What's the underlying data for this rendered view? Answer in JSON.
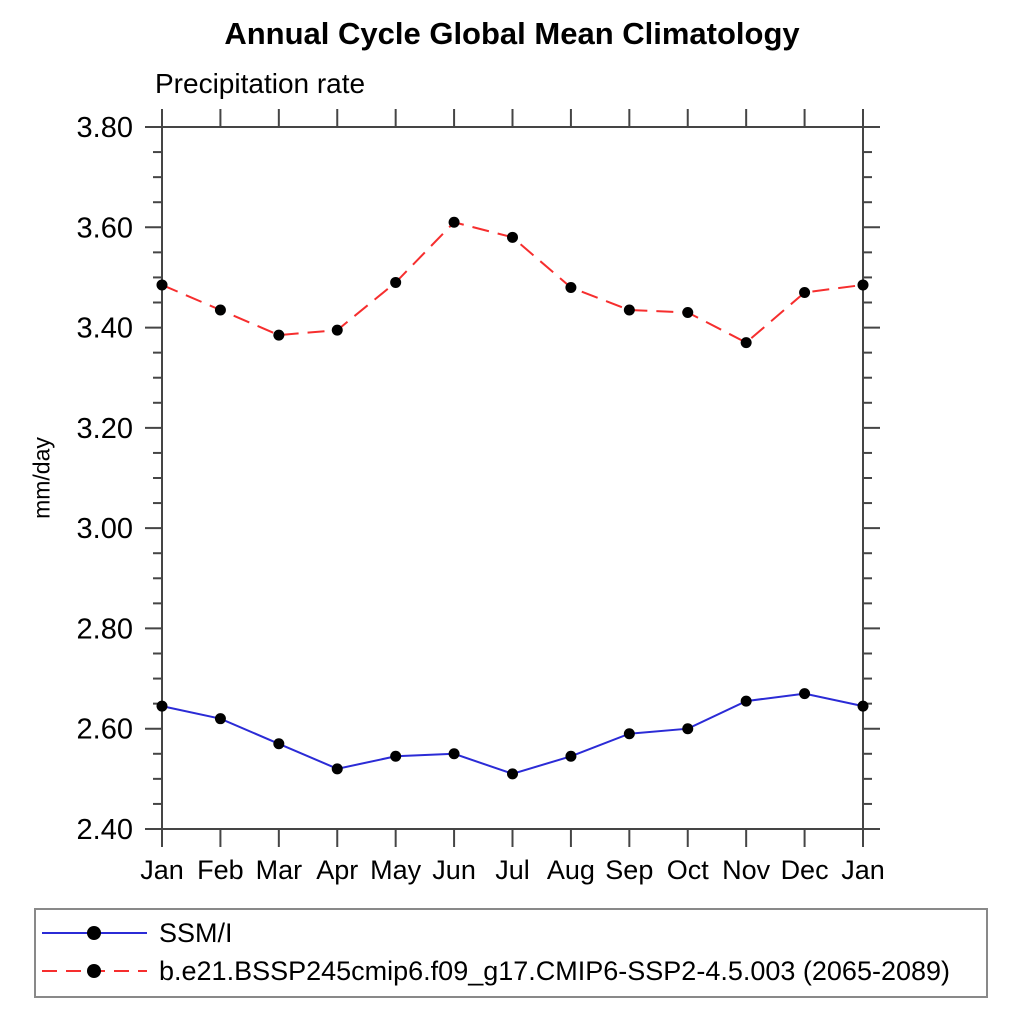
{
  "chart_data": {
    "type": "line",
    "title": "Annual Cycle Global Mean Climatology",
    "subtitle": "Precipitation rate",
    "ylabel": "mm/day",
    "xlabel": "",
    "x_categories": [
      "Jan",
      "Feb",
      "Mar",
      "Apr",
      "May",
      "Jun",
      "Jul",
      "Aug",
      "Sep",
      "Oct",
      "Nov",
      "Dec",
      "Jan"
    ],
    "ylim": [
      2.4,
      3.8
    ],
    "ytick_major_interval": 0.2,
    "ytick_minor_interval": 0.05,
    "ytick_labels": [
      "2.40",
      "2.60",
      "2.80",
      "3.00",
      "3.20",
      "3.40",
      "3.60",
      "3.80"
    ],
    "grid": "off",
    "legend_position": "bottom-left-box",
    "series": [
      {
        "name": "SSM/I",
        "line_style": "solid",
        "line_color": "#2b2bd6",
        "marker": "filled-circle",
        "marker_color": "#000000",
        "values": [
          2.645,
          2.62,
          2.57,
          2.52,
          2.545,
          2.55,
          2.51,
          2.545,
          2.59,
          2.6,
          2.655,
          2.67,
          2.645
        ]
      },
      {
        "name": "b.e21.BSSP245cmip6.f09_g17.CMIP6-SSP2-4.5.003 (2065-2089)",
        "line_style": "dashed",
        "line_color": "#f62e2e",
        "marker": "filled-circle",
        "marker_color": "#000000",
        "values": [
          3.485,
          3.435,
          3.385,
          3.395,
          3.49,
          3.61,
          3.58,
          3.48,
          3.435,
          3.43,
          3.37,
          3.47,
          3.485
        ]
      }
    ],
    "axis_color": "#454545"
  }
}
